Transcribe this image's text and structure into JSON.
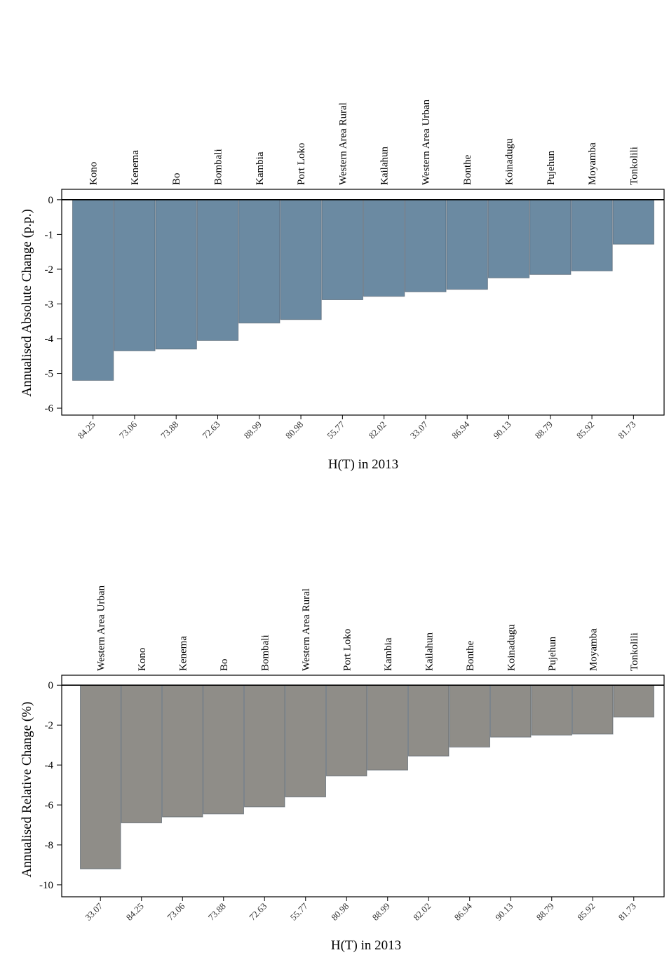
{
  "chart_data": [
    {
      "type": "bar",
      "ylabel": "Annualised Absolute Change (p.p.)",
      "xlabel": "H(T) in 2013",
      "ylim": [
        -6.2,
        0.3
      ],
      "yticks": [
        0,
        -1,
        -2,
        -3,
        -4,
        -5,
        -6
      ],
      "bar_color": "#6b8aa2",
      "categories": [
        "Kono",
        "Kenema",
        "Bo",
        "Bombali",
        "Kambia",
        "Port Loko",
        "Western Area Rural",
        "Kailahun",
        "Western Area Urban",
        "Bonthe",
        "Koinadugu",
        "Pujehun",
        "Moyamba",
        "Tonkolili"
      ],
      "x_tick_labels": [
        "84.25",
        "73.06",
        "73.88",
        "72.63",
        "88.99",
        "80.98",
        "55.77",
        "82.02",
        "33.07",
        "86.94",
        "90.13",
        "88.79",
        "85.92",
        "81.73"
      ],
      "values": [
        -5.2,
        -4.35,
        -4.3,
        -4.05,
        -3.55,
        -3.45,
        -2.88,
        -2.78,
        -2.65,
        -2.58,
        -2.25,
        -2.15,
        -2.05,
        -1.28
      ]
    },
    {
      "type": "bar",
      "ylabel": "Annualised Relative Change (%)",
      "xlabel": "H(T) in 2013",
      "ylim": [
        -10.6,
        0.5
      ],
      "yticks": [
        0,
        -2,
        -4,
        -6,
        -8,
        -10
      ],
      "bar_color": "#8f8d88",
      "categories": [
        "Western Area Urban",
        "Kono",
        "Kenema",
        "Bo",
        "Bombali",
        "Western Area Rural",
        "Port Loko",
        "Kambia",
        "Kailahun",
        "Bonthe",
        "Koinadugu",
        "Pujehun",
        "Moyamba",
        "Tonkolili"
      ],
      "x_tick_labels": [
        "33.07",
        "84.25",
        "73.06",
        "73.88",
        "72.63",
        "55.77",
        "80.98",
        "88.99",
        "82.02",
        "86.94",
        "90.13",
        "88.79",
        "85.92",
        "81.73"
      ],
      "values": [
        -9.2,
        -6.9,
        -6.6,
        -6.45,
        -6.1,
        -5.6,
        -4.55,
        -4.25,
        -3.55,
        -3.1,
        -2.6,
        -2.5,
        -2.45,
        -1.6
      ]
    }
  ]
}
